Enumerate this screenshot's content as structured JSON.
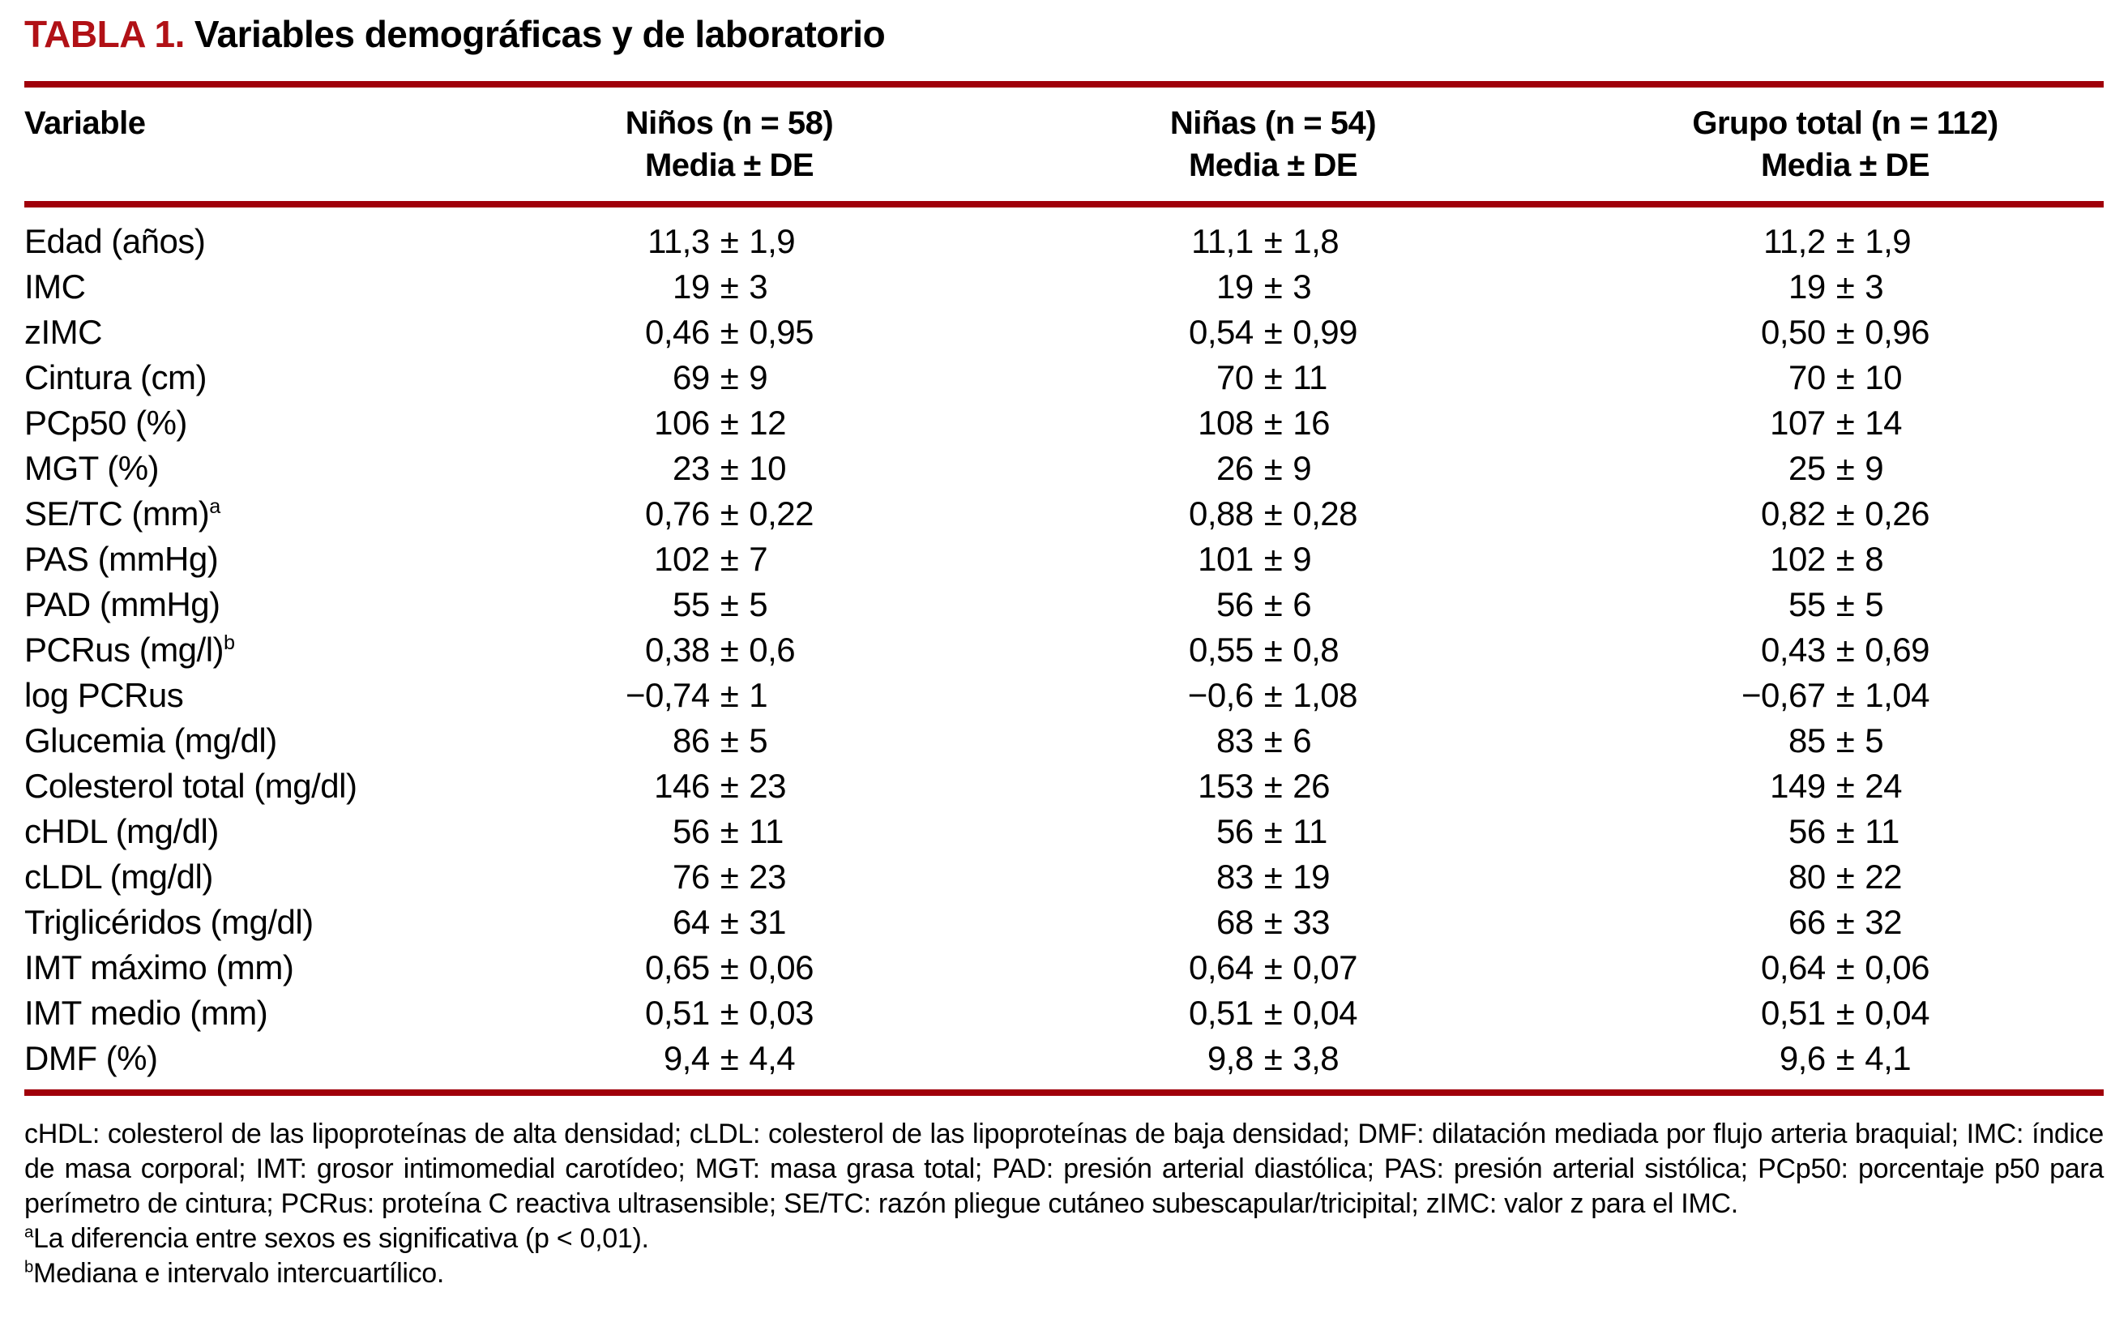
{
  "title": {
    "label": "TABLA 1.",
    "text": "Variables demográficas y de laboratorio"
  },
  "colors": {
    "title_red": "#B11116",
    "rule_red": "#A0000A"
  },
  "table": {
    "columns": [
      {
        "header": "Variable",
        "subheader": ""
      },
      {
        "header": "Niños (n = 58)",
        "subheader": "Media ± DE"
      },
      {
        "header": "Niñas (n = 54)",
        "subheader": "Media ± DE"
      },
      {
        "header": "Grupo total (n = 112)",
        "subheader": "Media ± DE"
      }
    ],
    "rows": [
      {
        "label": "Edad (años)",
        "sup": "",
        "ninos": "11,3 ± 1,9",
        "ninas": "11,1 ± 1,8",
        "total": "11,2 ± 1,9"
      },
      {
        "label": "IMC",
        "sup": "",
        "ninos": "19 ± 3",
        "ninas": "19 ± 3",
        "total": "19 ± 3"
      },
      {
        "label": "zIMC",
        "sup": "",
        "ninos": "0,46 ± 0,95",
        "ninas": "0,54 ± 0,99",
        "total": "0,50 ± 0,96"
      },
      {
        "label": "Cintura (cm)",
        "sup": "",
        "ninos": "69 ± 9",
        "ninas": "70 ± 11",
        "total": "70 ± 10"
      },
      {
        "label": "PCp50 (%)",
        "sup": "",
        "ninos": "106 ± 12",
        "ninas": "108 ± 16",
        "total": "107 ± 14"
      },
      {
        "label": "MGT (%)",
        "sup": "",
        "ninos": "23 ± 10",
        "ninas": "26 ± 9",
        "total": "25 ± 9"
      },
      {
        "label": "SE/TC (mm)",
        "sup": "a",
        "ninos": "0,76 ± 0,22",
        "ninas": "0,88 ± 0,28",
        "total": "0,82 ± 0,26"
      },
      {
        "label": "PAS (mmHg)",
        "sup": "",
        "ninos": "102 ± 7",
        "ninas": "101 ± 9",
        "total": "102 ± 8"
      },
      {
        "label": "PAD (mmHg)",
        "sup": "",
        "ninos": "55 ± 5",
        "ninas": "56 ± 6",
        "total": "55 ± 5"
      },
      {
        "label": "PCRus (mg/l)",
        "sup": "b",
        "ninos": "0,38 ± 0,6",
        "ninas": "0,55 ± 0,8",
        "total": "0,43 ± 0,69"
      },
      {
        "label": "log PCRus",
        "sup": "",
        "ninos": "−0,74 ± 1",
        "ninas": "−0,6 ± 1,08",
        "total": "−0,67 ± 1,04"
      },
      {
        "label": "Glucemia (mg/dl)",
        "sup": "",
        "ninos": "86 ± 5",
        "ninas": "83 ± 6",
        "total": "85 ± 5"
      },
      {
        "label": "Colesterol total (mg/dl)",
        "sup": "",
        "ninos": "146 ± 23",
        "ninas": "153 ± 26",
        "total": "149 ± 24"
      },
      {
        "label": "cHDL (mg/dl)",
        "sup": "",
        "ninos": "56 ± 11",
        "ninas": "56 ± 11",
        "total": "56 ± 11"
      },
      {
        "label": "cLDL (mg/dl)",
        "sup": "",
        "ninos": "76 ± 23",
        "ninas": "83 ± 19",
        "total": "80 ± 22"
      },
      {
        "label": "Triglicéridos (mg/dl)",
        "sup": "",
        "ninos": "64 ± 31",
        "ninas": "68 ± 33",
        "total": "66 ± 32"
      },
      {
        "label": "IMT máximo (mm)",
        "sup": "",
        "ninos": "0,65 ± 0,06",
        "ninas": "0,64 ± 0,07",
        "total": "0,64 ± 0,06"
      },
      {
        "label": "IMT medio (mm)",
        "sup": "",
        "ninos": "0,51 ± 0,03",
        "ninas": "0,51 ± 0,04",
        "total": "0,51 ± 0,04"
      },
      {
        "label": "DMF (%)",
        "sup": "",
        "ninos": "9,4 ± 4,4",
        "ninas": "9,8 ± 3,8",
        "total": "9,6 ± 4,1"
      }
    ]
  },
  "footnotes": {
    "abbreviations": "cHDL: colesterol de las lipoproteínas de alta densidad; cLDL: colesterol de las lipoproteínas de baja densidad; DMF: dilatación mediada por flujo arteria braquial; IMC: índice de masa corporal; IMT: grosor intimomedial carotídeo; MGT: masa grasa total; PAD: presión arterial diastólica; PAS: presión arterial sistólica; PCp50: porcentaje p50 para perímetro de cintura; PCRus: proteína C reactiva ultrasensible; SE/TC: razón pliegue cutáneo subescapular/tricipital; zIMC: valor z para el IMC.",
    "notes": [
      {
        "sup": "a",
        "text": "La diferencia entre sexos es significativa (p < 0,01)."
      },
      {
        "sup": "b",
        "text": "Mediana e intervalo intercuartílico."
      }
    ]
  }
}
